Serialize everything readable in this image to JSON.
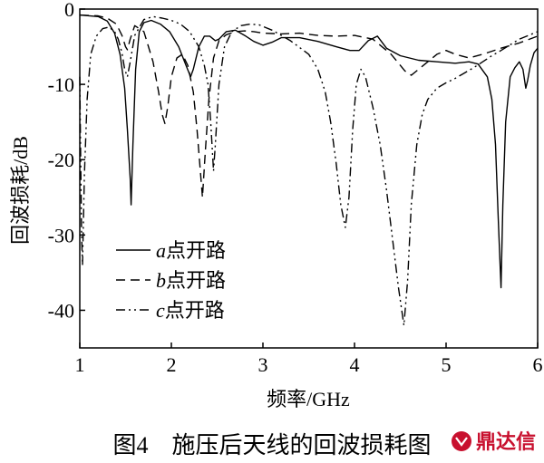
{
  "figure": {
    "caption": "图4　施压后天线的回波损耗图"
  },
  "watermark": {
    "text": "鼎达信",
    "color": "#c8102e"
  },
  "chart_data": {
    "type": "line",
    "xlabel": "频率/GHz",
    "ylabel": "回波损耗/dB",
    "xlim": [
      1,
      6
    ],
    "ylim": [
      -45,
      0
    ],
    "xticks": [
      1,
      2,
      3,
      4,
      5,
      6
    ],
    "yticks": [
      0,
      -10,
      -20,
      -30,
      -40
    ],
    "grid": false,
    "legend": {
      "position": "lower-left"
    },
    "series": [
      {
        "name": "a点开路",
        "label_letter": "a",
        "label_suffix": "点开路",
        "dash": "solid",
        "points": [
          [
            1.0,
            -0.8
          ],
          [
            1.2,
            -1.0
          ],
          [
            1.3,
            -1.6
          ],
          [
            1.38,
            -3.2
          ],
          [
            1.44,
            -6.0
          ],
          [
            1.49,
            -10.5
          ],
          [
            1.52,
            -16.0
          ],
          [
            1.55,
            -22.5
          ],
          [
            1.56,
            -26.0
          ],
          [
            1.58,
            -18.0
          ],
          [
            1.61,
            -8.0
          ],
          [
            1.65,
            -3.0
          ],
          [
            1.7,
            -1.8
          ],
          [
            1.78,
            -1.5
          ],
          [
            1.88,
            -2.0
          ],
          [
            1.98,
            -3.0
          ],
          [
            2.08,
            -5.0
          ],
          [
            2.16,
            -7.5
          ],
          [
            2.21,
            -9.0
          ],
          [
            2.24,
            -8.0
          ],
          [
            2.3,
            -5.0
          ],
          [
            2.36,
            -3.6
          ],
          [
            2.42,
            -3.6
          ],
          [
            2.48,
            -4.2
          ],
          [
            2.52,
            -4.0
          ],
          [
            2.6,
            -3.0
          ],
          [
            2.7,
            -2.8
          ],
          [
            2.8,
            -3.5
          ],
          [
            2.9,
            -4.3
          ],
          [
            3.0,
            -4.8
          ],
          [
            3.1,
            -4.4
          ],
          [
            3.2,
            -3.8
          ],
          [
            3.4,
            -3.8
          ],
          [
            3.6,
            -4.3
          ],
          [
            3.8,
            -5.0
          ],
          [
            3.95,
            -5.5
          ],
          [
            4.05,
            -5.5
          ],
          [
            4.15,
            -4.2
          ],
          [
            4.25,
            -3.6
          ],
          [
            4.35,
            -5.2
          ],
          [
            4.5,
            -6.2
          ],
          [
            4.7,
            -6.8
          ],
          [
            4.9,
            -7.0
          ],
          [
            5.1,
            -7.2
          ],
          [
            5.25,
            -7.0
          ],
          [
            5.35,
            -7.3
          ],
          [
            5.45,
            -9.0
          ],
          [
            5.5,
            -12.0
          ],
          [
            5.54,
            -18.0
          ],
          [
            5.57,
            -28.0
          ],
          [
            5.6,
            -37.0
          ],
          [
            5.62,
            -26.0
          ],
          [
            5.65,
            -15.0
          ],
          [
            5.7,
            -9.0
          ],
          [
            5.75,
            -7.8
          ],
          [
            5.8,
            -7.0
          ],
          [
            5.84,
            -8.0
          ],
          [
            5.87,
            -10.5
          ],
          [
            5.89,
            -9.5
          ],
          [
            5.92,
            -7.5
          ],
          [
            5.96,
            -5.8
          ],
          [
            6.0,
            -5.2
          ]
        ]
      },
      {
        "name": "b点开路",
        "label_letter": "b",
        "label_suffix": "点开路",
        "dash": "10 6",
        "points": [
          [
            1.0,
            -0.8
          ],
          [
            1.2,
            -0.9
          ],
          [
            1.3,
            -1.2
          ],
          [
            1.4,
            -2.0
          ],
          [
            1.46,
            -3.5
          ],
          [
            1.5,
            -5.0
          ],
          [
            1.52,
            -5.4
          ],
          [
            1.55,
            -4.0
          ],
          [
            1.6,
            -2.2
          ],
          [
            1.7,
            -3.0
          ],
          [
            1.8,
            -7.0
          ],
          [
            1.86,
            -11.0
          ],
          [
            1.9,
            -14.0
          ],
          [
            1.93,
            -15.2
          ],
          [
            1.96,
            -13.0
          ],
          [
            2.0,
            -9.0
          ],
          [
            2.06,
            -6.5
          ],
          [
            2.12,
            -6.0
          ],
          [
            2.18,
            -7.5
          ],
          [
            2.24,
            -11.0
          ],
          [
            2.28,
            -16.0
          ],
          [
            2.32,
            -22.0
          ],
          [
            2.34,
            -25.0
          ],
          [
            2.37,
            -19.0
          ],
          [
            2.41,
            -12.0
          ],
          [
            2.46,
            -6.5
          ],
          [
            2.52,
            -4.2
          ],
          [
            2.6,
            -3.4
          ],
          [
            2.7,
            -3.0
          ],
          [
            2.8,
            -2.9
          ],
          [
            2.9,
            -3.0
          ],
          [
            3.0,
            -3.2
          ],
          [
            3.2,
            -3.3
          ],
          [
            3.4,
            -3.2
          ],
          [
            3.6,
            -3.5
          ],
          [
            3.8,
            -3.6
          ],
          [
            4.0,
            -3.5
          ],
          [
            4.2,
            -4.0
          ],
          [
            4.4,
            -6.0
          ],
          [
            4.55,
            -8.2
          ],
          [
            4.62,
            -8.8
          ],
          [
            4.7,
            -8.0
          ],
          [
            4.8,
            -7.0
          ],
          [
            4.9,
            -6.0
          ],
          [
            5.0,
            -5.5
          ],
          [
            5.1,
            -6.0
          ],
          [
            5.25,
            -6.5
          ],
          [
            5.4,
            -6.0
          ],
          [
            5.6,
            -5.2
          ],
          [
            5.8,
            -4.5
          ],
          [
            6.0,
            -3.6
          ]
        ]
      },
      {
        "name": "c点开路",
        "label_letter": "c",
        "label_suffix": "点开路",
        "dash": "10 4 2 4 2 4",
        "points": [
          [
            1.0,
            -9.0
          ],
          [
            1.01,
            -20.0
          ],
          [
            1.02,
            -30.0
          ],
          [
            1.03,
            -34.0
          ],
          [
            1.05,
            -22.0
          ],
          [
            1.08,
            -12.0
          ],
          [
            1.12,
            -6.0
          ],
          [
            1.18,
            -3.6
          ],
          [
            1.25,
            -2.6
          ],
          [
            1.32,
            -2.4
          ],
          [
            1.38,
            -3.0
          ],
          [
            1.42,
            -4.0
          ],
          [
            1.46,
            -5.8
          ],
          [
            1.49,
            -8.0
          ],
          [
            1.52,
            -9.0
          ],
          [
            1.55,
            -7.0
          ],
          [
            1.6,
            -3.5
          ],
          [
            1.7,
            -1.4
          ],
          [
            1.8,
            -1.0
          ],
          [
            1.9,
            -1.2
          ],
          [
            2.0,
            -1.5
          ],
          [
            2.1,
            -2.0
          ],
          [
            2.2,
            -3.0
          ],
          [
            2.3,
            -5.0
          ],
          [
            2.36,
            -7.5
          ],
          [
            2.4,
            -10.0
          ],
          [
            2.43,
            -15.0
          ],
          [
            2.46,
            -21.5
          ],
          [
            2.48,
            -18.0
          ],
          [
            2.52,
            -10.0
          ],
          [
            2.58,
            -5.0
          ],
          [
            2.66,
            -3.0
          ],
          [
            2.76,
            -2.2
          ],
          [
            2.86,
            -2.0
          ],
          [
            2.96,
            -2.1
          ],
          [
            3.1,
            -2.8
          ],
          [
            3.3,
            -4.2
          ],
          [
            3.5,
            -6.0
          ],
          [
            3.6,
            -8.0
          ],
          [
            3.68,
            -11.0
          ],
          [
            3.74,
            -15.0
          ],
          [
            3.8,
            -20.5
          ],
          [
            3.85,
            -26.0
          ],
          [
            3.9,
            -29.0
          ],
          [
            3.94,
            -25.0
          ],
          [
            3.98,
            -16.0
          ],
          [
            4.02,
            -10.0
          ],
          [
            4.07,
            -8.0
          ],
          [
            4.12,
            -9.0
          ],
          [
            4.2,
            -13.0
          ],
          [
            4.28,
            -18.0
          ],
          [
            4.35,
            -24.0
          ],
          [
            4.42,
            -31.0
          ],
          [
            4.48,
            -37.0
          ],
          [
            4.54,
            -42.0
          ],
          [
            4.58,
            -36.0
          ],
          [
            4.62,
            -26.0
          ],
          [
            4.68,
            -18.0
          ],
          [
            4.74,
            -14.0
          ],
          [
            4.8,
            -12.0
          ],
          [
            4.9,
            -10.5
          ],
          [
            5.0,
            -9.8
          ],
          [
            5.1,
            -9.2
          ],
          [
            5.2,
            -8.5
          ],
          [
            5.3,
            -7.8
          ],
          [
            5.4,
            -7.0
          ],
          [
            5.5,
            -6.2
          ],
          [
            5.6,
            -5.5
          ],
          [
            5.8,
            -4.0
          ],
          [
            5.9,
            -3.5
          ],
          [
            6.0,
            -3.0
          ]
        ]
      }
    ]
  }
}
